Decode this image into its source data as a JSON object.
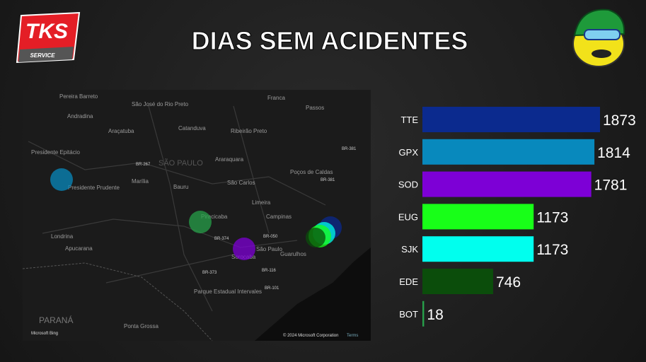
{
  "header": {
    "title": "DIAS SEM ACIDENTES",
    "logo": "TKS",
    "logo_sub": "SERVICE"
  },
  "map": {
    "labels": [
      "Pereira Barreto",
      "Andradina",
      "São José do Rio Preto",
      "Araçatuba",
      "Catanduva",
      "Ribeirão Preto",
      "Franca",
      "Passos",
      "Presidente Epitácio",
      "Presidente Prudente",
      "Marília",
      "Bauru",
      "Araraquara",
      "São Carlos",
      "Poços de Caldas",
      "Limeira",
      "Campinas",
      "Piracicaba",
      "Londrina",
      "Apucarana",
      "São Paulo",
      "Sorocaba",
      "Guarulhos",
      "PARANÁ",
      "Ponta Grossa",
      "Parque Estadual Intervales",
      "SÃO PAULO"
    ],
    "roads": [
      "BR-267",
      "BR-381",
      "BR-381",
      "BR-374",
      "BR-050",
      "BR-373",
      "BR-116",
      "BR-101"
    ],
    "provider": "Microsoft Bing",
    "attribution": "© 2024 Microsoft Corporation",
    "terms": "Terms"
  },
  "chart_data": {
    "type": "bar",
    "orientation": "horizontal",
    "categories": [
      "TTE",
      "GPX",
      "SOD",
      "EUG",
      "SJK",
      "EDE",
      "BOT"
    ],
    "values": [
      1873,
      1814,
      1781,
      1173,
      1173,
      746,
      18
    ],
    "colors": [
      "#0b2a8e",
      "#0889bd",
      "#7d00d6",
      "#18ff18",
      "#00ffee",
      "#0b4d0b",
      "#27a04a"
    ]
  }
}
